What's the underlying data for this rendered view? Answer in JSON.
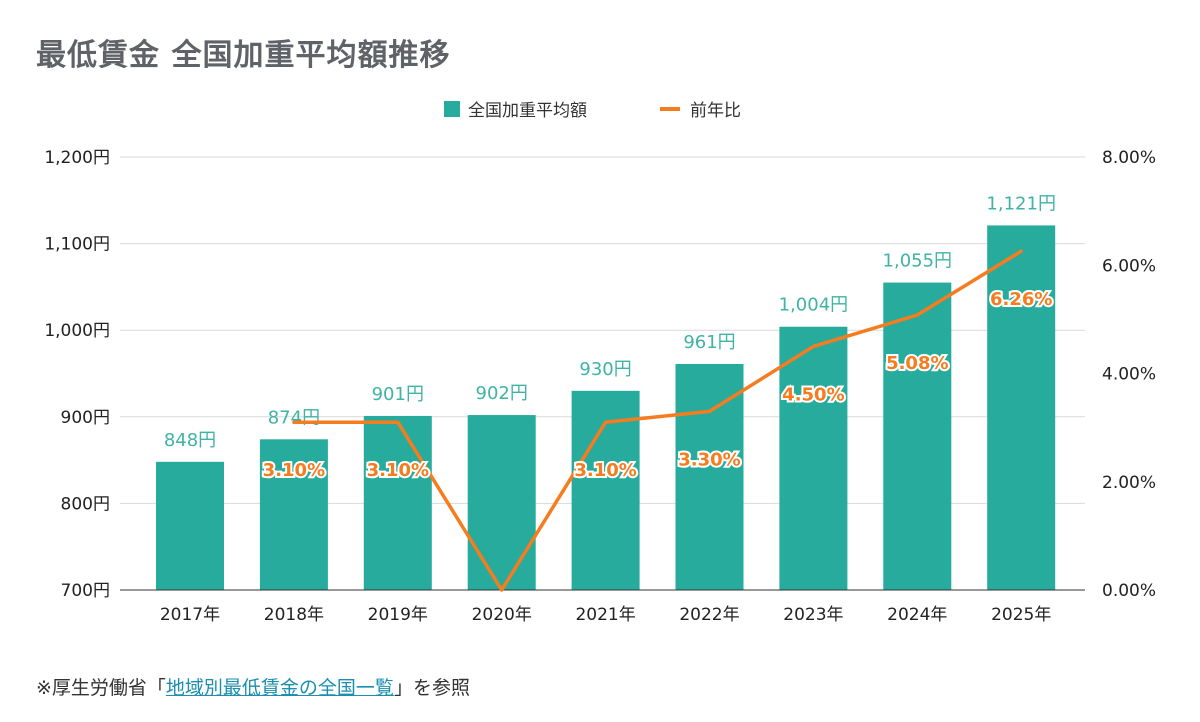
{
  "chart_data": {
    "title": "最低賃金 全国加重平均額推移",
    "type": "bar",
    "categories": [
      "2017年",
      "2018年",
      "2019年",
      "2020年",
      "2021年",
      "2022年",
      "2023年",
      "2024年",
      "2025年"
    ],
    "series": [
      {
        "name": "全国加重平均額",
        "type": "bar",
        "axis": "left",
        "values": [
          848,
          874,
          901,
          902,
          930,
          961,
          1004,
          1055,
          1121
        ],
        "labels": [
          "848円",
          "874円",
          "901円",
          "902円",
          "930円",
          "961円",
          "1,004円",
          "1,055円",
          "1,121円"
        ]
      },
      {
        "name": "前年比",
        "type": "line",
        "axis": "right",
        "values": [
          null,
          3.1,
          3.1,
          0.0,
          3.1,
          3.3,
          4.5,
          5.08,
          6.26
        ],
        "labels": [
          "",
          "3.10%",
          "3.10%",
          "",
          "3.10%",
          "3.30%",
          "4.50%",
          "5.08%",
          "6.26%"
        ]
      }
    ],
    "y_left": {
      "min": 700,
      "max": 1200,
      "ticks": [
        {
          "value": 700,
          "label": "700円"
        },
        {
          "value": 800,
          "label": "800円"
        },
        {
          "value": 900,
          "label": "900円"
        },
        {
          "value": 1000,
          "label": "1,000円"
        },
        {
          "value": 1100,
          "label": "1,100円"
        },
        {
          "value": 1200,
          "label": "1,200円"
        }
      ]
    },
    "y_right": {
      "min": 0,
      "max": 8,
      "ticks": [
        {
          "value": 0,
          "label": "0.00%"
        },
        {
          "value": 2,
          "label": "2.00%"
        },
        {
          "value": 4,
          "label": "4.00%"
        },
        {
          "value": 6,
          "label": "6.00%"
        },
        {
          "value": 8,
          "label": "8.00%"
        }
      ]
    },
    "legend_position": "top-center",
    "grid": true
  },
  "colors": {
    "bar": "#26ab9c",
    "line": "#f57c1f",
    "bar_label": "#3fb3a5",
    "title": "#5f6368",
    "grid": "#d9d9d9"
  },
  "note": {
    "prefix": "※厚生労働省「",
    "link": "地域別最低賃金の全国一覧",
    "suffix": "」を参照"
  }
}
